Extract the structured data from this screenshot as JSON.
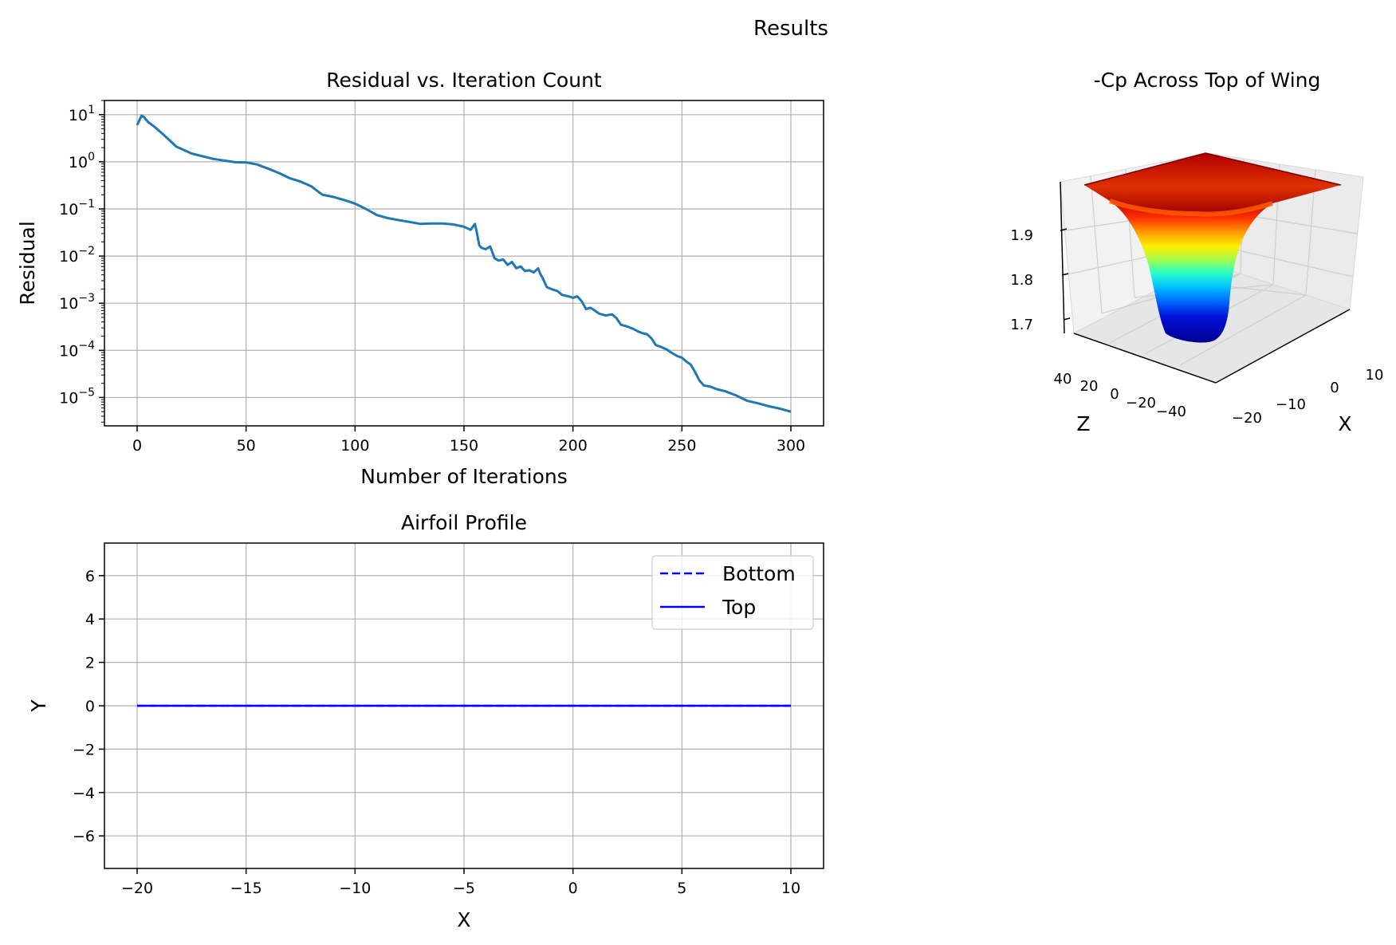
{
  "figure": {
    "title": "Results"
  },
  "colors": {
    "residual_line": "#1f77b4",
    "airfoil_line": "#0000ff",
    "grid": "#b0b0b0",
    "surface_colormap": "jet"
  },
  "chart_data": [
    {
      "type": "line",
      "title": "Residual vs. Iteration Count",
      "xlabel": "Number of Iterations",
      "ylabel": "Residual",
      "xlim": [
        -15,
        315
      ],
      "ylim": [
        2.5e-06,
        20
      ],
      "yscale": "log",
      "grid": true,
      "x_ticks": [
        0,
        50,
        100,
        150,
        200,
        250,
        300
      ],
      "x_tick_labels": [
        "0",
        "50",
        "100",
        "150",
        "200",
        "250",
        "300"
      ],
      "y_ticks": [
        1e-05,
        0.0001,
        0.001,
        0.01,
        0.1,
        1,
        10
      ],
      "y_tick_labels": [
        {
          "base": "10",
          "exp": "−5"
        },
        {
          "base": "10",
          "exp": "−4"
        },
        {
          "base": "10",
          "exp": "−3"
        },
        {
          "base": "10",
          "exp": "−2"
        },
        {
          "base": "10",
          "exp": "−1"
        },
        {
          "base": "10",
          "exp": "0"
        },
        {
          "base": "10",
          "exp": "1"
        }
      ],
      "series": [
        {
          "x": [
            0,
            1,
            2,
            3,
            5,
            8,
            12,
            18,
            25,
            35,
            45,
            50,
            55,
            60,
            65,
            70,
            75,
            80,
            85,
            90,
            95,
            100,
            105,
            110,
            115,
            120,
            125,
            130,
            135,
            140,
            145,
            150,
            153,
            155,
            156,
            157,
            158,
            160,
            162,
            164,
            166,
            168,
            170,
            172,
            174,
            176,
            178,
            180,
            182,
            184,
            185,
            186,
            188,
            190,
            193,
            195,
            198,
            200,
            202,
            204,
            206,
            208,
            210,
            212,
            215,
            218,
            220,
            222,
            225,
            228,
            230,
            232,
            234,
            236,
            238,
            240,
            243,
            245,
            248,
            250,
            252,
            254,
            256,
            258,
            260,
            263,
            266,
            270,
            275,
            280,
            285,
            290,
            295,
            300
          ],
          "y": [
            6.0,
            7.5,
            9.5,
            9.0,
            7.0,
            5.5,
            3.8,
            2.1,
            1.5,
            1.15,
            0.98,
            0.97,
            0.88,
            0.72,
            0.58,
            0.45,
            0.38,
            0.3,
            0.2,
            0.18,
            0.155,
            0.13,
            0.1,
            0.074,
            0.064,
            0.058,
            0.053,
            0.048,
            0.049,
            0.049,
            0.047,
            0.042,
            0.036,
            0.048,
            0.03,
            0.017,
            0.015,
            0.014,
            0.016,
            0.009,
            0.008,
            0.0085,
            0.0065,
            0.0075,
            0.0055,
            0.006,
            0.0048,
            0.005,
            0.0045,
            0.0055,
            0.0042,
            0.0035,
            0.0022,
            0.002,
            0.0018,
            0.0015,
            0.0014,
            0.0013,
            0.0014,
            0.0011,
            0.00075,
            0.0008,
            0.0007,
            0.0006,
            0.00055,
            0.00058,
            0.00048,
            0.00035,
            0.00032,
            0.00028,
            0.00025,
            0.00023,
            0.00022,
            0.00018,
            0.00013,
            0.00012,
            0.000105,
            9e-05,
            7.5e-05,
            7e-05,
            5.8e-05,
            5e-05,
            3.5e-05,
            2.3e-05,
            1.8e-05,
            1.7e-05,
            1.5e-05,
            1.35e-05,
            1.1e-05,
            8.5e-06,
            7.5e-06,
            6.5e-06,
            5.8e-06,
            5e-06
          ]
        }
      ]
    },
    {
      "type": "line",
      "title": "Airfoil Profile",
      "xlabel": "X",
      "ylabel": "Y",
      "xlim": [
        -21.5,
        11.5
      ],
      "ylim": [
        -7.5,
        7.5
      ],
      "grid": true,
      "x_ticks": [
        -20,
        -15,
        -10,
        -5,
        0,
        5,
        10
      ],
      "x_tick_labels": [
        "−20",
        "−15",
        "−10",
        "−5",
        "0",
        "5",
        "10"
      ],
      "y_ticks": [
        -6,
        -4,
        -2,
        0,
        2,
        4,
        6
      ],
      "y_tick_labels": [
        "−6",
        "−4",
        "−2",
        "0",
        "2",
        "4",
        "6"
      ],
      "legend_position": "upper right",
      "series": [
        {
          "name": "Bottom",
          "style": "dashed",
          "x": [
            -20,
            10
          ],
          "y": [
            0,
            0
          ]
        },
        {
          "name": "Top",
          "style": "solid",
          "x": [
            -20,
            10
          ],
          "y": [
            0,
            0
          ]
        }
      ]
    },
    {
      "type": "surface3d",
      "title": "-Cp Across Top of Wing",
      "xlabel": "X",
      "zlabel_side": "Z",
      "x_tick_labels": [
        "−20",
        "−10",
        "0",
        "10"
      ],
      "z_tick_labels": [
        "40",
        "20",
        "0",
        "−20",
        "−40"
      ],
      "value_tick_labels": [
        "1.7",
        "1.8",
        "1.9"
      ],
      "value_range": [
        1.66,
        1.98
      ],
      "colormap": "jet",
      "description_shape": "flat plateau near 1.97 with a deep trough down to about 1.66"
    }
  ]
}
